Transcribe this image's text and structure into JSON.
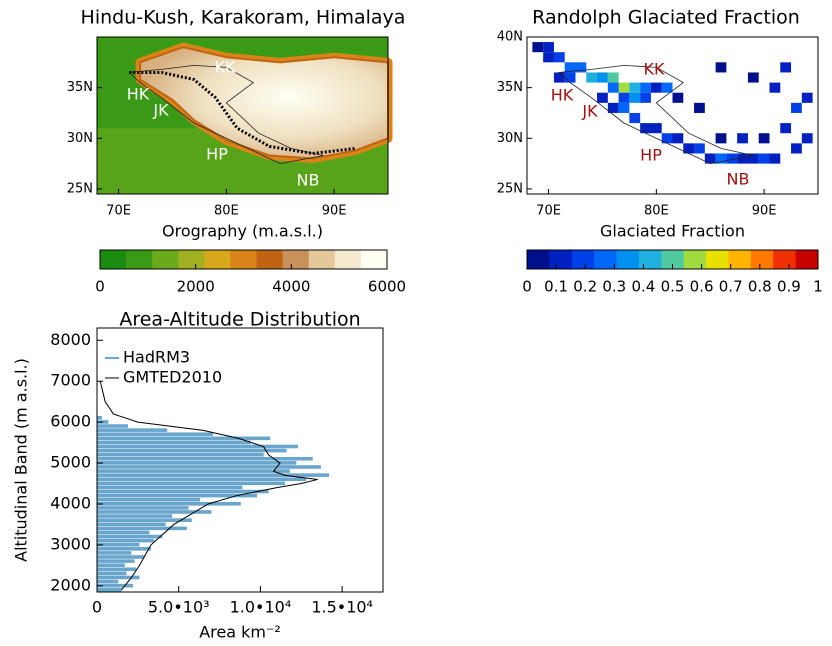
{
  "chart_data": [
    {
      "type": "map",
      "title": "Hindu-Kush, Karakoram, Himalaya",
      "xlabel": "Orography (m.a.s.l.)",
      "xlim": [
        68,
        95
      ],
      "ylim": [
        24.5,
        40
      ],
      "xticks": [
        {
          "value": 70,
          "label": "70E"
        },
        {
          "value": 80,
          "label": "80E"
        },
        {
          "value": 90,
          "label": "90E"
        }
      ],
      "yticks": [
        {
          "value": 25,
          "label": "25N"
        },
        {
          "value": 30,
          "label": "30N"
        },
        {
          "value": 35,
          "label": "35N"
        }
      ],
      "annotations": [
        "KK",
        "HK",
        "JK",
        "HP",
        "NB"
      ],
      "annotation_color": "#ffffff",
      "colorbar": {
        "lim": [
          0,
          6000
        ],
        "ticks": [
          0,
          2000,
          4000,
          6000
        ],
        "colors": [
          "#1a8c12",
          "#3a9a16",
          "#6aaa1c",
          "#a0b020",
          "#d8a81c",
          "#d88418",
          "#c06414",
          "#c8905a",
          "#e4c89a",
          "#f4ead0",
          "#fffff4"
        ]
      }
    },
    {
      "type": "heatmap",
      "title": "Randolph Glaciated Fraction",
      "xlabel": "Glaciated Fraction",
      "xlim": [
        68,
        95
      ],
      "ylim": [
        24.5,
        40
      ],
      "xticks": [
        {
          "value": 70,
          "label": "70E"
        },
        {
          "value": 80,
          "label": "80E"
        },
        {
          "value": 90,
          "label": "90E"
        }
      ],
      "yticks": [
        {
          "value": 25,
          "label": "25N"
        },
        {
          "value": 30,
          "label": "30N"
        },
        {
          "value": 35,
          "label": "35N"
        },
        {
          "value": 40,
          "label": "40N"
        }
      ],
      "annotations": [
        "KK",
        "HK",
        "JK",
        "HP",
        "NB"
      ],
      "annotation_color": "#a01010",
      "cells": [
        {
          "lon": 69,
          "lat": 39,
          "value": 0.05
        },
        {
          "lon": 70,
          "lat": 39,
          "value": 0.1
        },
        {
          "lon": 70,
          "lat": 38,
          "value": 0.15
        },
        {
          "lon": 71,
          "lat": 38,
          "value": 0.2
        },
        {
          "lon": 72,
          "lat": 37,
          "value": 0.25
        },
        {
          "lon": 73,
          "lat": 37,
          "value": 0.3
        },
        {
          "lon": 71,
          "lat": 36,
          "value": 0.15
        },
        {
          "lon": 72,
          "lat": 36,
          "value": 0.2
        },
        {
          "lon": 74,
          "lat": 36,
          "value": 0.45
        },
        {
          "lon": 75,
          "lat": 36,
          "value": 0.35
        },
        {
          "lon": 76,
          "lat": 36,
          "value": 0.5
        },
        {
          "lon": 77,
          "lat": 35,
          "value": 0.55
        },
        {
          "lon": 76,
          "lat": 35,
          "value": 0.3
        },
        {
          "lon": 78,
          "lat": 35,
          "value": 0.4
        },
        {
          "lon": 79,
          "lat": 35,
          "value": 0.25
        },
        {
          "lon": 80,
          "lat": 35,
          "value": 0.15
        },
        {
          "lon": 81,
          "lat": 35,
          "value": 0.3
        },
        {
          "lon": 77,
          "lat": 34,
          "value": 0.2
        },
        {
          "lon": 78,
          "lat": 34,
          "value": 0.35
        },
        {
          "lon": 79,
          "lat": 34,
          "value": 0.2
        },
        {
          "lon": 75,
          "lat": 34,
          "value": 0.1
        },
        {
          "lon": 76,
          "lat": 33,
          "value": 0.15
        },
        {
          "lon": 77,
          "lat": 33,
          "value": 0.25
        },
        {
          "lon": 78,
          "lat": 32,
          "value": 0.2
        },
        {
          "lon": 79,
          "lat": 31,
          "value": 0.15
        },
        {
          "lon": 80,
          "lat": 31,
          "value": 0.1
        },
        {
          "lon": 81,
          "lat": 30,
          "value": 0.2
        },
        {
          "lon": 82,
          "lat": 30,
          "value": 0.15
        },
        {
          "lon": 83,
          "lat": 29,
          "value": 0.1
        },
        {
          "lon": 84,
          "lat": 29,
          "value": 0.2
        },
        {
          "lon": 85,
          "lat": 28,
          "value": 0.15
        },
        {
          "lon": 86,
          "lat": 28,
          "value": 0.25
        },
        {
          "lon": 87,
          "lat": 28,
          "value": 0.2
        },
        {
          "lon": 88,
          "lat": 28,
          "value": 0.15
        },
        {
          "lon": 89,
          "lat": 28,
          "value": 0.1
        },
        {
          "lon": 90,
          "lat": 28,
          "value": 0.2
        },
        {
          "lon": 91,
          "lat": 28,
          "value": 0.1
        },
        {
          "lon": 86,
          "lat": 30,
          "value": 0.05
        },
        {
          "lon": 88,
          "lat": 30,
          "value": 0.1
        },
        {
          "lon": 90,
          "lat": 30,
          "value": 0.05
        },
        {
          "lon": 92,
          "lat": 31,
          "value": 0.1
        },
        {
          "lon": 93,
          "lat": 33,
          "value": 0.2
        },
        {
          "lon": 94,
          "lat": 34,
          "value": 0.15
        },
        {
          "lon": 91,
          "lat": 35,
          "value": 0.1
        },
        {
          "lon": 89,
          "lat": 36,
          "value": 0.05
        },
        {
          "lon": 92,
          "lat": 37,
          "value": 0.1
        },
        {
          "lon": 86,
          "lat": 37,
          "value": 0.05
        },
        {
          "lon": 84,
          "lat": 33,
          "value": 0.05
        },
        {
          "lon": 82,
          "lat": 34,
          "value": 0.05
        },
        {
          "lon": 93,
          "lat": 29,
          "value": 0.15
        },
        {
          "lon": 94,
          "lat": 30,
          "value": 0.1
        }
      ],
      "colorbar": {
        "lim": [
          0,
          1
        ],
        "ticks": [
          0,
          0.1,
          0.2,
          0.3,
          0.4,
          0.5,
          0.6,
          0.7,
          0.8,
          0.9,
          1
        ],
        "colors": [
          "#00108c",
          "#0020c0",
          "#0040e8",
          "#0068f8",
          "#0090f0",
          "#20b0e0",
          "#50c8a0",
          "#a0dc40",
          "#e8e000",
          "#ffb400",
          "#ff7800",
          "#f03000",
          "#c80000"
        ]
      }
    },
    {
      "type": "hbar",
      "title": "Area-Altitude Distribution",
      "xlabel": "Area km⁻²",
      "ylabel": "Altitudinal Band (m a.s.l.)",
      "xlim": [
        0,
        17500
      ],
      "ylim": [
        1850,
        8300
      ],
      "xticks": [
        0,
        {
          "value": 5000,
          "label": "5.0•10³"
        },
        {
          "value": 10000,
          "label": "1.0•10⁴"
        },
        {
          "value": 15000,
          "label": "1.5•10⁴"
        }
      ],
      "yticks": [
        2000,
        3000,
        4000,
        5000,
        6000,
        7000,
        8000
      ],
      "legend": "upper left",
      "series": [
        {
          "name": "HadRM3",
          "color": "#6aa6cc",
          "y": [
            1900,
            2000,
            2100,
            2200,
            2300,
            2400,
            2500,
            2600,
            2700,
            2800,
            2900,
            3000,
            3100,
            3200,
            3300,
            3400,
            3500,
            3600,
            3700,
            3800,
            3900,
            4000,
            4100,
            4200,
            4300,
            4400,
            4500,
            4600,
            4700,
            4800,
            4900,
            5000,
            5100,
            5200,
            5300,
            5400,
            5500,
            5600,
            5700,
            5800,
            5900,
            6000,
            6100
          ],
          "values": [
            1500,
            2200,
            1300,
            2600,
            1800,
            2400,
            1700,
            2300,
            2900,
            2100,
            3300,
            2600,
            3500,
            4000,
            3200,
            5500,
            4200,
            5800,
            4600,
            7000,
            5600,
            8800,
            6300,
            9800,
            10500,
            8900,
            11500,
            12800,
            14200,
            11800,
            13700,
            12200,
            13200,
            10200,
            11600,
            12300,
            9400,
            10600,
            7100,
            4300,
            1900,
            700,
            300
          ]
        },
        {
          "name": "GMTED2010",
          "color": "#000000",
          "y": [
            1900,
            2200,
            2500,
            3000,
            3500,
            4000,
            4200,
            4400,
            4500,
            4600,
            4700,
            4800,
            5000,
            5200,
            5400,
            5600,
            5800,
            6000,
            6200,
            6500,
            7000
          ],
          "values": [
            1500,
            2100,
            2600,
            3300,
            4700,
            6800,
            8500,
            11000,
            12500,
            13500,
            11500,
            10800,
            11200,
            10500,
            10200,
            8700,
            6500,
            2500,
            1000,
            500,
            200
          ]
        }
      ]
    }
  ]
}
